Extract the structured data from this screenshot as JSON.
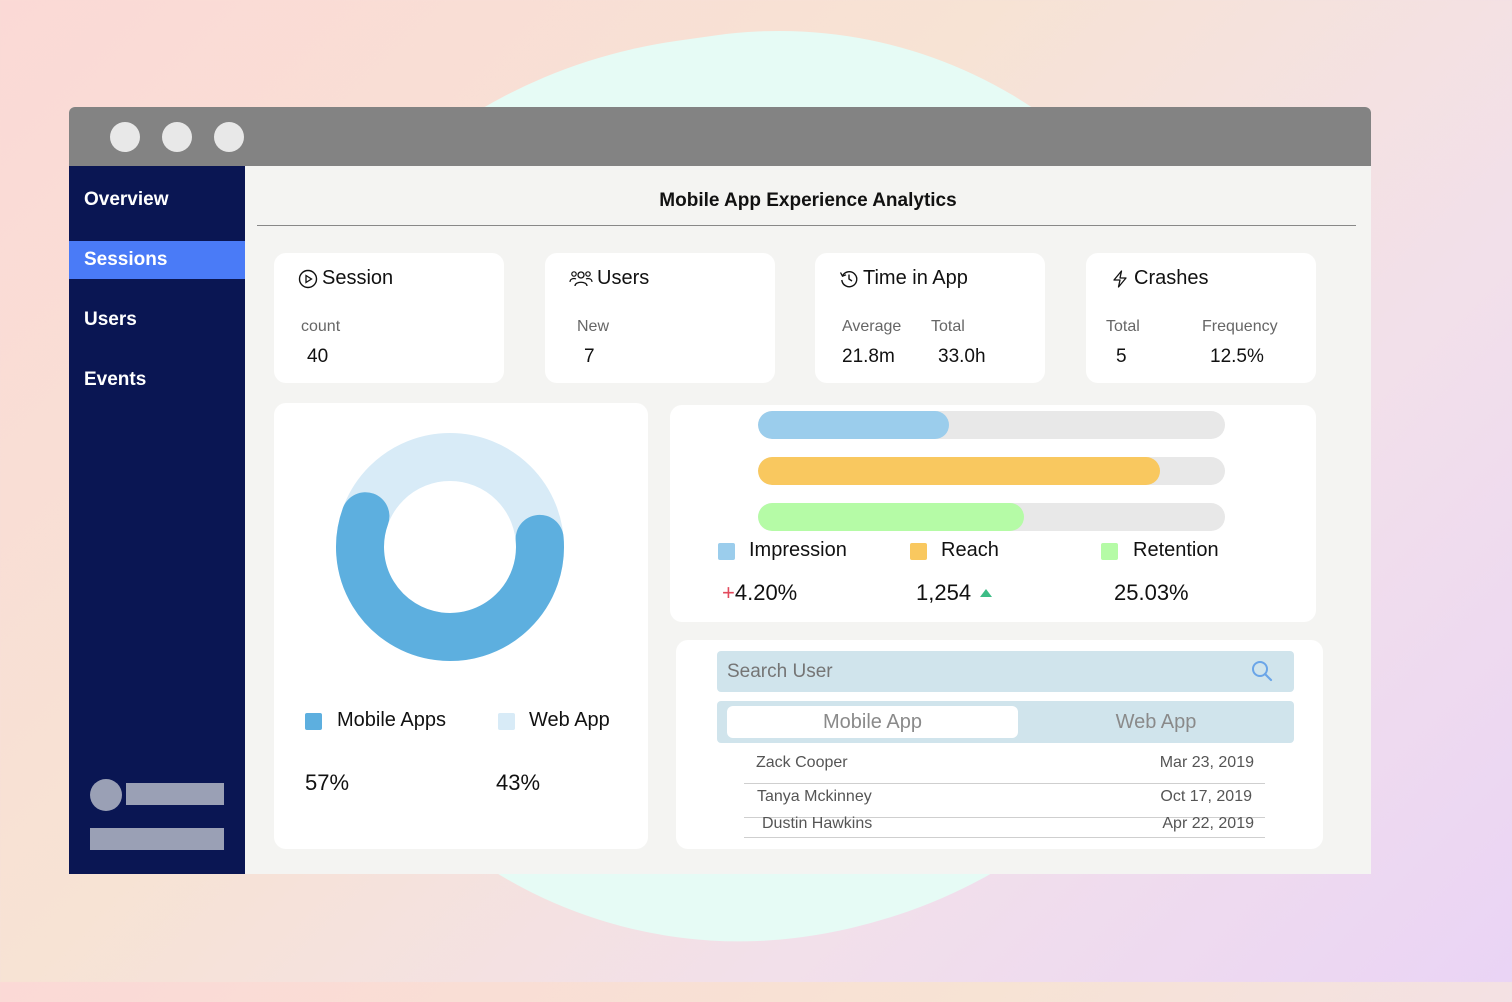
{
  "window": {
    "controls": [
      "close",
      "minimize",
      "maximize"
    ]
  },
  "sidebar": {
    "items": [
      {
        "label": "Overview",
        "active": false
      },
      {
        "label": "Sessions",
        "active": true
      },
      {
        "label": "Users",
        "active": false
      },
      {
        "label": "Events",
        "active": false
      }
    ]
  },
  "main": {
    "title": "Mobile App Experience Analytics"
  },
  "stats": {
    "session": {
      "title": "Session",
      "icon": "play-circle-icon",
      "label": "count",
      "value": "40"
    },
    "users": {
      "title": "Users",
      "icon": "users-icon",
      "label": "New",
      "value": "7"
    },
    "time_in_app": {
      "title": "Time in App",
      "icon": "history-icon",
      "avg_label": "Average",
      "avg_value": "21.8m",
      "total_label": "Total",
      "total_value": "33.0h"
    },
    "crashes": {
      "title": "Crashes",
      "icon": "lightning-icon",
      "total_label": "Total",
      "total_value": "5",
      "freq_label": "Frequency",
      "freq_value": "12.5%"
    }
  },
  "platform_split": {
    "legend": [
      {
        "label": "Mobile Apps",
        "value": "57%",
        "color": "#5dafdf",
        "fraction": 0.57
      },
      {
        "label": "Web App",
        "value": "43%",
        "color": "#d8ebf7",
        "fraction": 0.43
      }
    ]
  },
  "engagement": {
    "bars": [
      {
        "label": "Impression",
        "color": "#9bcdec",
        "fraction": 0.41,
        "value": "4.20%",
        "prefix": "+"
      },
      {
        "label": "Reach",
        "color": "#f9c85f",
        "fraction": 0.86,
        "value": "1,254",
        "trend": "up"
      },
      {
        "label": "Retention",
        "color": "#b5fba6",
        "fraction": 0.57,
        "value": "25.03%"
      }
    ],
    "track_color": "#e8e8e8"
  },
  "user_list": {
    "search_placeholder": "Search User",
    "tabs": [
      {
        "label": "Mobile App",
        "active": true
      },
      {
        "label": "Web App",
        "active": false
      }
    ],
    "rows": [
      {
        "name": "Zack Cooper",
        "date": "Mar 23, 2019"
      },
      {
        "name": "Tanya Mckinney",
        "date": "Oct 17, 2019"
      },
      {
        "name": "Dustin Hawkins",
        "date": "Apr 22, 2019"
      }
    ]
  },
  "colors": {
    "sidebar": "#0a1653",
    "active_nav": "#4a7bf7",
    "titlebar": "#838383",
    "up_arrow": "#3dbd86",
    "plus": "#e24a5c"
  }
}
